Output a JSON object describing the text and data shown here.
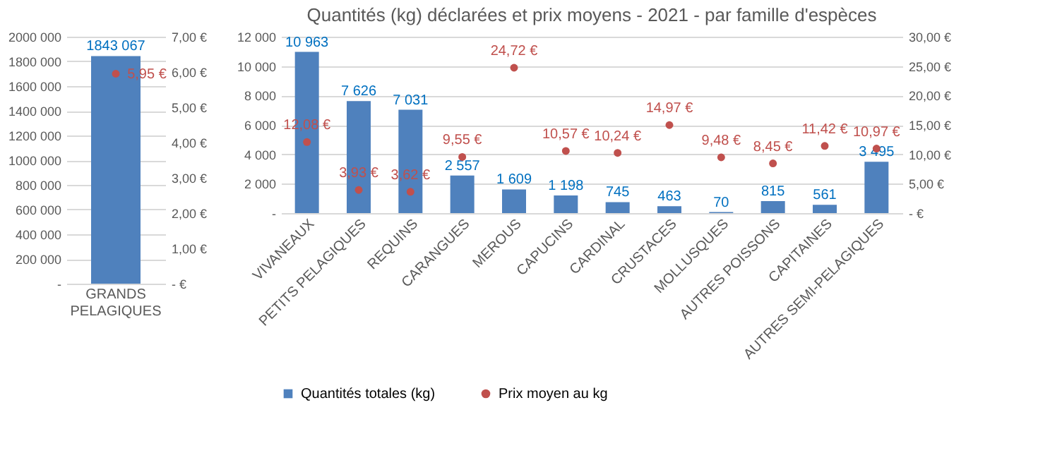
{
  "chart_data": [
    {
      "type": "bar",
      "categories": [
        "GRANDS PELAGIQUES"
      ],
      "grid": "y",
      "legend": false,
      "marker": "circle",
      "series": [
        {
          "color": "#4f81bd",
          "values": [
            1843067
          ],
          "value_labels": [
            "1843 067"
          ]
        },
        {
          "type": "scatter",
          "axis": "y2",
          "color": "#c0504d",
          "values": [
            5.95
          ],
          "value_labels": [
            "5,95 €"
          ]
        }
      ],
      "ylim": [
        0,
        2000000
      ],
      "yticks": [
        {
          "value": 0,
          "label": "-"
        },
        {
          "value": 200000,
          "label": "200 000"
        },
        {
          "value": 400000,
          "label": "400 000"
        },
        {
          "value": 600000,
          "label": "600 000"
        },
        {
          "value": 800000,
          "label": "800 000"
        },
        {
          "value": 1000000,
          "label": "1000 000"
        },
        {
          "value": 1200000,
          "label": "1200 000"
        },
        {
          "value": 1400000,
          "label": "1400 000"
        },
        {
          "value": 1600000,
          "label": "1600 000"
        },
        {
          "value": 1800000,
          "label": "1800 000"
        },
        {
          "value": 2000000,
          "label": "2000 000"
        }
      ],
      "y2lim": [
        0,
        7
      ],
      "y2ticks": [
        {
          "value": 0,
          "label": "-  €"
        },
        {
          "value": 1,
          "label": "1,00 €"
        },
        {
          "value": 2,
          "label": "2,00 €"
        },
        {
          "value": 3,
          "label": "3,00 €"
        },
        {
          "value": 4,
          "label": "4,00 €"
        },
        {
          "value": 5,
          "label": "5,00 €"
        },
        {
          "value": 6,
          "label": "6,00 €"
        },
        {
          "value": 7,
          "label": "7,00 €"
        }
      ]
    },
    {
      "type": "bar",
      "title": "Quantités (kg) déclarées et prix moyens - 2021 - par famille d'espèces",
      "categories": [
        "VIVANEAUX",
        "PETITS PELAGIQUES",
        "REQUINS",
        "CARANGUES",
        "MEROUS",
        "CAPUCINS",
        "CARDINAL",
        "CRUSTACES",
        "MOLLUSQUES",
        "AUTRES POISSONS",
        "CAPITAINES",
        "AUTRES SEMI-PELAGIQUES"
      ],
      "grid": "y",
      "legend": "bottom",
      "marker": "circle",
      "series": [
        {
          "name": "Quantités totales (kg)",
          "color": "#4f81bd",
          "values": [
            10963,
            7626,
            7031,
            2557,
            1609,
            1198,
            745,
            463,
            70,
            815,
            561,
            3495
          ],
          "value_labels": [
            "10 963",
            "7 626",
            "7 031",
            "2 557",
            "1 609",
            "1 198",
            "745",
            "463",
            "70",
            "815",
            "561",
            "3 495"
          ]
        },
        {
          "name": "Prix moyen au kg",
          "type": "scatter",
          "axis": "y2",
          "color": "#c0504d",
          "values": [
            12.08,
            3.93,
            3.62,
            9.55,
            24.72,
            10.57,
            10.24,
            14.97,
            9.48,
            8.45,
            11.42,
            10.97
          ],
          "value_labels": [
            "12,08 €",
            "3,93 €",
            "3,62 €",
            "9,55 €",
            "24,72 €",
            "10,57 €",
            "10,24 €",
            "14,97 €",
            "9,48 €",
            "8,45 €",
            "11,42 €",
            "10,97 €"
          ]
        }
      ],
      "ylim": [
        0,
        12000
      ],
      "yticks": [
        {
          "value": 0,
          "label": "-"
        },
        {
          "value": 2000,
          "label": "2 000"
        },
        {
          "value": 4000,
          "label": "4 000"
        },
        {
          "value": 6000,
          "label": "6 000"
        },
        {
          "value": 8000,
          "label": "8 000"
        },
        {
          "value": 10000,
          "label": "10 000"
        },
        {
          "value": 12000,
          "label": "12 000"
        }
      ],
      "y2lim": [
        0,
        30
      ],
      "y2ticks": [
        {
          "value": 0,
          "label": "-  €"
        },
        {
          "value": 5,
          "label": "5,00 €"
        },
        {
          "value": 10,
          "label": "10,00 €"
        },
        {
          "value": 15,
          "label": "15,00 €"
        },
        {
          "value": 20,
          "label": "20,00 €"
        },
        {
          "value": 25,
          "label": "25,00 €"
        },
        {
          "value": 30,
          "label": "30,00 €"
        }
      ]
    }
  ]
}
